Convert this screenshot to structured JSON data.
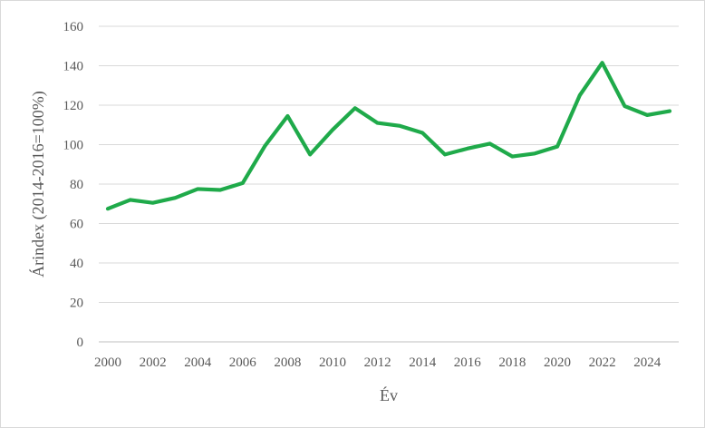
{
  "chart_data": {
    "type": "line",
    "title": "",
    "xlabel": "Év",
    "ylabel": "Árindex (2014-2016=100%)",
    "xlim": [
      2000,
      2025
    ],
    "ylim": [
      0,
      160
    ],
    "y_ticks": [
      0,
      20,
      40,
      60,
      80,
      100,
      120,
      140,
      160
    ],
    "x_ticks": [
      2000,
      2002,
      2004,
      2006,
      2008,
      2010,
      2012,
      2014,
      2016,
      2018,
      2020,
      2022,
      2024
    ],
    "grid": "horizontal",
    "legend": "none",
    "series": [
      {
        "color": "#1faa4a",
        "x": [
          2000,
          2001,
          2002,
          2003,
          2004,
          2005,
          2006,
          2007,
          2008,
          2009,
          2010,
          2011,
          2012,
          2013,
          2014,
          2015,
          2016,
          2017,
          2018,
          2019,
          2020,
          2021,
          2022,
          2023,
          2024,
          2025
        ],
        "y": [
          67.5,
          72,
          70.5,
          73,
          77.5,
          77,
          80.5,
          99.5,
          114.5,
          95,
          107.5,
          118.5,
          111,
          109.5,
          106,
          95,
          98,
          100.5,
          94,
          95.5,
          99,
          125,
          141.5,
          119.5,
          115,
          117
        ]
      }
    ]
  }
}
